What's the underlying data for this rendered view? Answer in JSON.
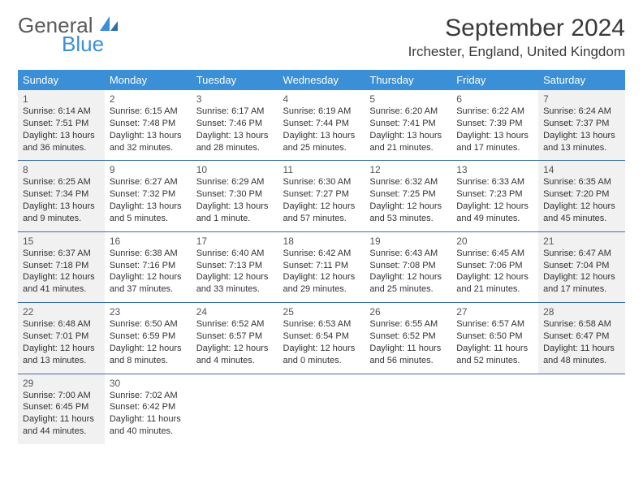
{
  "logo": {
    "general": "General",
    "blue": "Blue"
  },
  "title": "September 2024",
  "location": "Irchester, England, United Kingdom",
  "colors": {
    "header_bg": "#3b8fd6",
    "header_text": "#ffffff",
    "border": "#3b6ea5",
    "shaded": "#f1f1f1",
    "logo_gray": "#5a5a5a",
    "logo_blue": "#3b8fd6"
  },
  "weekdays": [
    "Sunday",
    "Monday",
    "Tuesday",
    "Wednesday",
    "Thursday",
    "Friday",
    "Saturday"
  ],
  "weeks": [
    [
      {
        "num": "1",
        "shaded": true,
        "sunrise": "Sunrise: 6:14 AM",
        "sunset": "Sunset: 7:51 PM",
        "daylight": "Daylight: 13 hours and 36 minutes."
      },
      {
        "num": "2",
        "shaded": false,
        "sunrise": "Sunrise: 6:15 AM",
        "sunset": "Sunset: 7:48 PM",
        "daylight": "Daylight: 13 hours and 32 minutes."
      },
      {
        "num": "3",
        "shaded": false,
        "sunrise": "Sunrise: 6:17 AM",
        "sunset": "Sunset: 7:46 PM",
        "daylight": "Daylight: 13 hours and 28 minutes."
      },
      {
        "num": "4",
        "shaded": false,
        "sunrise": "Sunrise: 6:19 AM",
        "sunset": "Sunset: 7:44 PM",
        "daylight": "Daylight: 13 hours and 25 minutes."
      },
      {
        "num": "5",
        "shaded": false,
        "sunrise": "Sunrise: 6:20 AM",
        "sunset": "Sunset: 7:41 PM",
        "daylight": "Daylight: 13 hours and 21 minutes."
      },
      {
        "num": "6",
        "shaded": false,
        "sunrise": "Sunrise: 6:22 AM",
        "sunset": "Sunset: 7:39 PM",
        "daylight": "Daylight: 13 hours and 17 minutes."
      },
      {
        "num": "7",
        "shaded": true,
        "sunrise": "Sunrise: 6:24 AM",
        "sunset": "Sunset: 7:37 PM",
        "daylight": "Daylight: 13 hours and 13 minutes."
      }
    ],
    [
      {
        "num": "8",
        "shaded": true,
        "sunrise": "Sunrise: 6:25 AM",
        "sunset": "Sunset: 7:34 PM",
        "daylight": "Daylight: 13 hours and 9 minutes."
      },
      {
        "num": "9",
        "shaded": false,
        "sunrise": "Sunrise: 6:27 AM",
        "sunset": "Sunset: 7:32 PM",
        "daylight": "Daylight: 13 hours and 5 minutes."
      },
      {
        "num": "10",
        "shaded": false,
        "sunrise": "Sunrise: 6:29 AM",
        "sunset": "Sunset: 7:30 PM",
        "daylight": "Daylight: 13 hours and 1 minute."
      },
      {
        "num": "11",
        "shaded": false,
        "sunrise": "Sunrise: 6:30 AM",
        "sunset": "Sunset: 7:27 PM",
        "daylight": "Daylight: 12 hours and 57 minutes."
      },
      {
        "num": "12",
        "shaded": false,
        "sunrise": "Sunrise: 6:32 AM",
        "sunset": "Sunset: 7:25 PM",
        "daylight": "Daylight: 12 hours and 53 minutes."
      },
      {
        "num": "13",
        "shaded": false,
        "sunrise": "Sunrise: 6:33 AM",
        "sunset": "Sunset: 7:23 PM",
        "daylight": "Daylight: 12 hours and 49 minutes."
      },
      {
        "num": "14",
        "shaded": true,
        "sunrise": "Sunrise: 6:35 AM",
        "sunset": "Sunset: 7:20 PM",
        "daylight": "Daylight: 12 hours and 45 minutes."
      }
    ],
    [
      {
        "num": "15",
        "shaded": true,
        "sunrise": "Sunrise: 6:37 AM",
        "sunset": "Sunset: 7:18 PM",
        "daylight": "Daylight: 12 hours and 41 minutes."
      },
      {
        "num": "16",
        "shaded": false,
        "sunrise": "Sunrise: 6:38 AM",
        "sunset": "Sunset: 7:16 PM",
        "daylight": "Daylight: 12 hours and 37 minutes."
      },
      {
        "num": "17",
        "shaded": false,
        "sunrise": "Sunrise: 6:40 AM",
        "sunset": "Sunset: 7:13 PM",
        "daylight": "Daylight: 12 hours and 33 minutes."
      },
      {
        "num": "18",
        "shaded": false,
        "sunrise": "Sunrise: 6:42 AM",
        "sunset": "Sunset: 7:11 PM",
        "daylight": "Daylight: 12 hours and 29 minutes."
      },
      {
        "num": "19",
        "shaded": false,
        "sunrise": "Sunrise: 6:43 AM",
        "sunset": "Sunset: 7:08 PM",
        "daylight": "Daylight: 12 hours and 25 minutes."
      },
      {
        "num": "20",
        "shaded": false,
        "sunrise": "Sunrise: 6:45 AM",
        "sunset": "Sunset: 7:06 PM",
        "daylight": "Daylight: 12 hours and 21 minutes."
      },
      {
        "num": "21",
        "shaded": true,
        "sunrise": "Sunrise: 6:47 AM",
        "sunset": "Sunset: 7:04 PM",
        "daylight": "Daylight: 12 hours and 17 minutes."
      }
    ],
    [
      {
        "num": "22",
        "shaded": true,
        "sunrise": "Sunrise: 6:48 AM",
        "sunset": "Sunset: 7:01 PM",
        "daylight": "Daylight: 12 hours and 13 minutes."
      },
      {
        "num": "23",
        "shaded": false,
        "sunrise": "Sunrise: 6:50 AM",
        "sunset": "Sunset: 6:59 PM",
        "daylight": "Daylight: 12 hours and 8 minutes."
      },
      {
        "num": "24",
        "shaded": false,
        "sunrise": "Sunrise: 6:52 AM",
        "sunset": "Sunset: 6:57 PM",
        "daylight": "Daylight: 12 hours and 4 minutes."
      },
      {
        "num": "25",
        "shaded": false,
        "sunrise": "Sunrise: 6:53 AM",
        "sunset": "Sunset: 6:54 PM",
        "daylight": "Daylight: 12 hours and 0 minutes."
      },
      {
        "num": "26",
        "shaded": false,
        "sunrise": "Sunrise: 6:55 AM",
        "sunset": "Sunset: 6:52 PM",
        "daylight": "Daylight: 11 hours and 56 minutes."
      },
      {
        "num": "27",
        "shaded": false,
        "sunrise": "Sunrise: 6:57 AM",
        "sunset": "Sunset: 6:50 PM",
        "daylight": "Daylight: 11 hours and 52 minutes."
      },
      {
        "num": "28",
        "shaded": true,
        "sunrise": "Sunrise: 6:58 AM",
        "sunset": "Sunset: 6:47 PM",
        "daylight": "Daylight: 11 hours and 48 minutes."
      }
    ],
    [
      {
        "num": "29",
        "shaded": true,
        "sunrise": "Sunrise: 7:00 AM",
        "sunset": "Sunset: 6:45 PM",
        "daylight": "Daylight: 11 hours and 44 minutes."
      },
      {
        "num": "30",
        "shaded": false,
        "sunrise": "Sunrise: 7:02 AM",
        "sunset": "Sunset: 6:42 PM",
        "daylight": "Daylight: 11 hours and 40 minutes."
      },
      {
        "empty": true
      },
      {
        "empty": true
      },
      {
        "empty": true
      },
      {
        "empty": true
      },
      {
        "empty": true
      }
    ]
  ]
}
